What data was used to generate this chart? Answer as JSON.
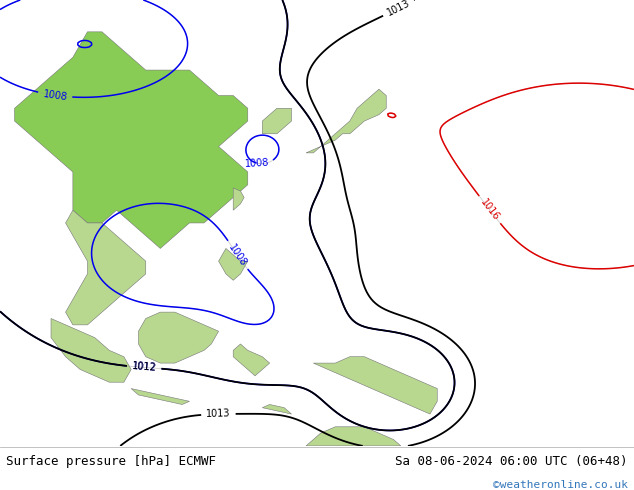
{
  "title_left": "Surface pressure [hPa] ECMWF",
  "title_right": "Sa 08-06-2024 06:00 UTC (06+48)",
  "watermark": "©weatheronline.co.uk",
  "land_color": "#b8d890",
  "sea_color": "#d8e8f0",
  "bottom_bar_color": "#ffffff",
  "text_color": "#000000",
  "watermark_color": "#3377bb",
  "font_size_title": 9,
  "font_size_watermark": 8,
  "contour_blue_color": "#0000ee",
  "contour_black_color": "#000000",
  "contour_red_color": "#dd0000",
  "contour_gray_color": "#999999",
  "highlight_land_color": "#88cc55",
  "xlim": [
    88,
    175
  ],
  "ylim": [
    -15,
    55
  ]
}
